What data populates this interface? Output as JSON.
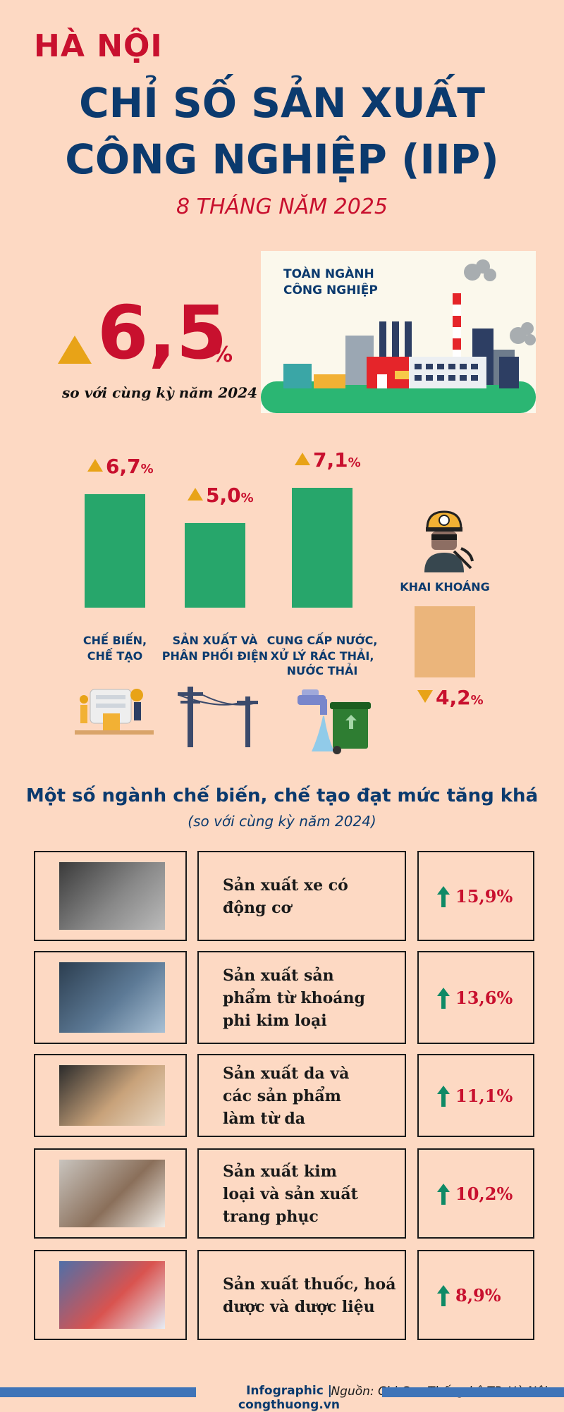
{
  "header": {
    "city": "HÀ NỘI",
    "title_line1": "CHỈ SỐ SẢN XUẤT",
    "title_line2": "CÔNG NGHIỆP (IIP)",
    "period": "8 THÁNG NĂM 2025"
  },
  "headline": {
    "value": "6,5",
    "unit": "%",
    "note": "so với cùng kỳ năm 2024",
    "direction": "up",
    "card_label_1": "TOÀN NGÀNH",
    "card_label_2": "CÔNG NGHIỆP"
  },
  "colors": {
    "background": "#FDD9C3",
    "red": "#C8102E",
    "navy": "#0B3A6E",
    "bar_up": "#27A66B",
    "bar_down": "#EBB57B",
    "triangle": "#E8A317",
    "arrow": "#0E8A66"
  },
  "chart_data": {
    "type": "bar",
    "categories": [
      [
        "CHẾ BIẾN,",
        "CHẾ TẠO"
      ],
      [
        "SẢN XUẤT VÀ",
        "PHÂN PHỐI ĐIỆN"
      ],
      [
        "CUNG CẤP NƯỚC,",
        "XỬ LÝ RÁC THẢI,",
        "NƯỚC THẢI"
      ],
      [
        "KHAI KHOÁNG"
      ]
    ],
    "values": [
      6.7,
      5.0,
      7.1,
      -4.2
    ],
    "labels": [
      "6,7",
      "5,0",
      "7,1",
      "4,2"
    ],
    "unit": "%",
    "icons": [
      "factory-workers-icon",
      "power-pole-icon",
      "water-tap-trash-bin-icon",
      "miner-icon"
    ]
  },
  "section": {
    "title": "Một số ngành chế biến, chế tạo đạt mức tăng khá",
    "subtitle": "(so với cùng kỳ năm 2024)",
    "rows": [
      {
        "label": [
          "Sản xuất xe có",
          "động cơ"
        ],
        "value": "15,9%",
        "image": "engine-image"
      },
      {
        "label": [
          "Sản xuất sản",
          "phẩm từ khoáng",
          "phi kim loại"
        ],
        "value": "13,6%",
        "image": "cnc-machine-image"
      },
      {
        "label": [
          "Sản xuất da và",
          "các sản phẩm",
          "làm từ da"
        ],
        "value": "11,1%",
        "image": "leather-shoes-image"
      },
      {
        "label": [
          "Sản xuất kim",
          "loại và sản xuất",
          "trang phục"
        ],
        "value": "10,2%",
        "image": "clothing-shop-image"
      },
      {
        "label": [
          "Sản xuất thuốc, hoá",
          "dược và dược liệu"
        ],
        "value": "8,9%",
        "image": "pills-image"
      }
    ]
  },
  "footer": {
    "source": "Nguồn: Chi Cục Thống kê TP. Hà Nội",
    "brand": "Infographic | congthuong.vn"
  }
}
